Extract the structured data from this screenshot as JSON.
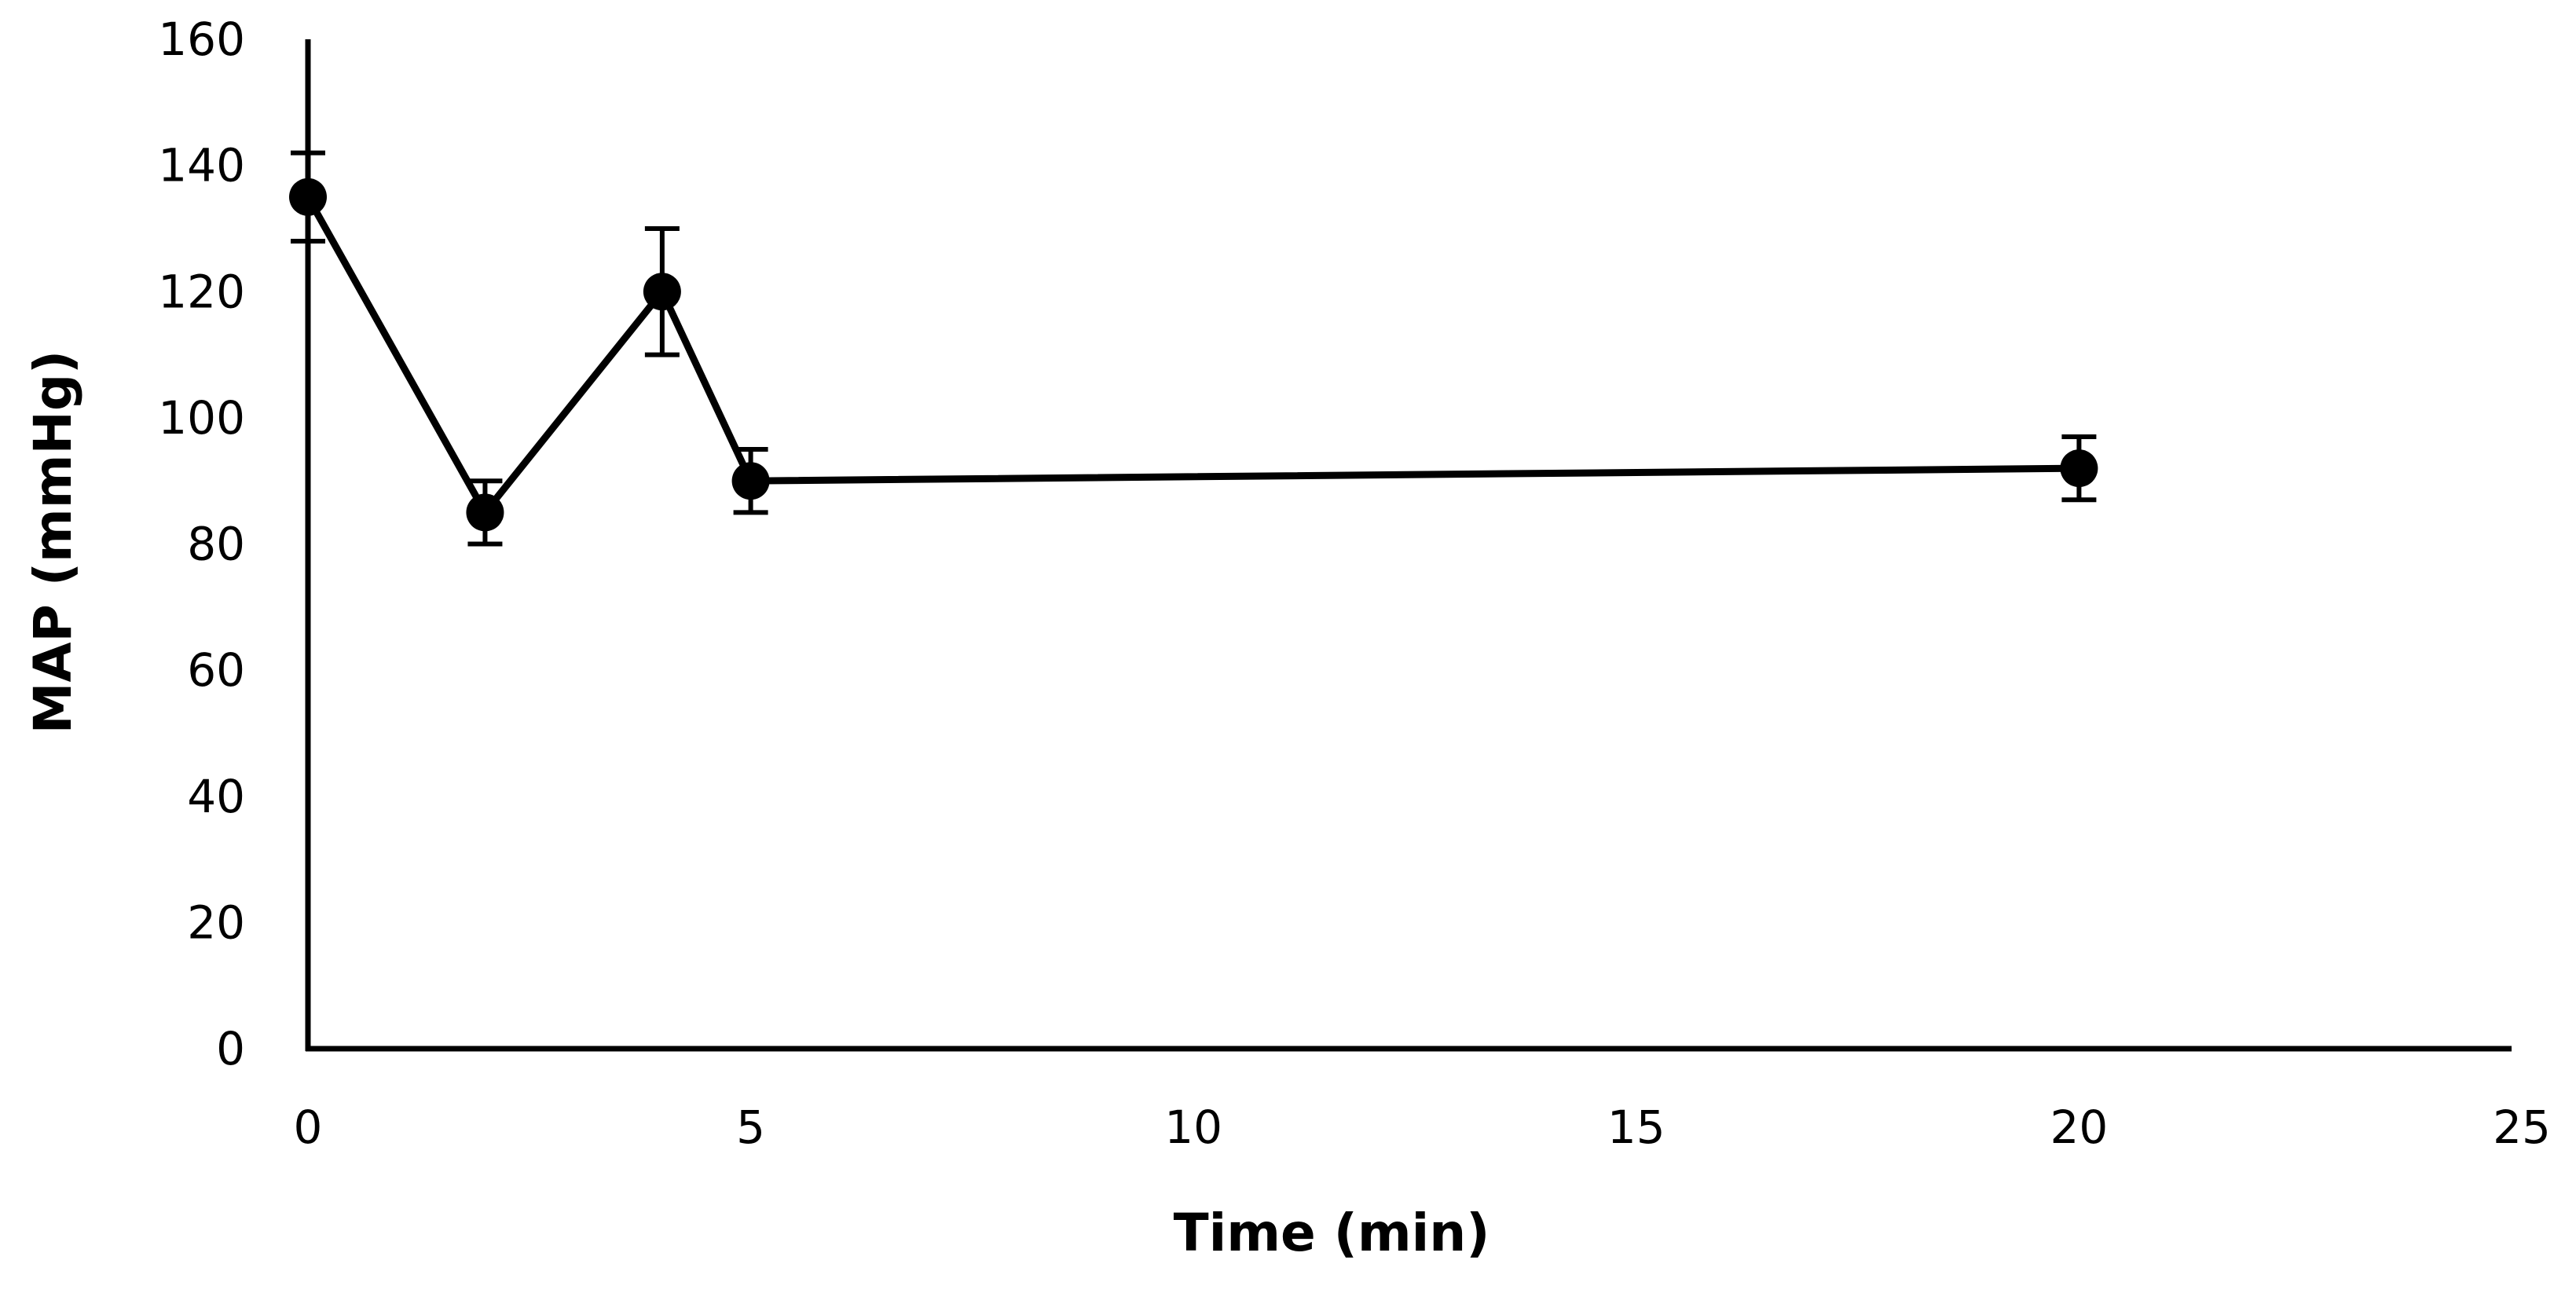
{
  "chart_data": {
    "type": "line",
    "title": "",
    "xlabel": "Time (min)",
    "ylabel": "MAP (mmHg)",
    "xlim": [
      0,
      25
    ],
    "ylim": [
      0,
      160
    ],
    "xticks": [
      0,
      5,
      10,
      15,
      20,
      25
    ],
    "yticks": [
      0,
      20,
      40,
      60,
      80,
      100,
      120,
      140,
      160
    ],
    "grid": false,
    "legend": "none",
    "series": [
      {
        "color": "#000000",
        "marker": "circle",
        "points": [
          {
            "x": 0,
            "y": 135,
            "err": 7
          },
          {
            "x": 2,
            "y": 85,
            "err": 5
          },
          {
            "x": 4,
            "y": 120,
            "err": 10
          },
          {
            "x": 5,
            "y": 90,
            "err": 5
          },
          {
            "x": 20,
            "y": 92,
            "err": 5
          }
        ]
      }
    ]
  }
}
